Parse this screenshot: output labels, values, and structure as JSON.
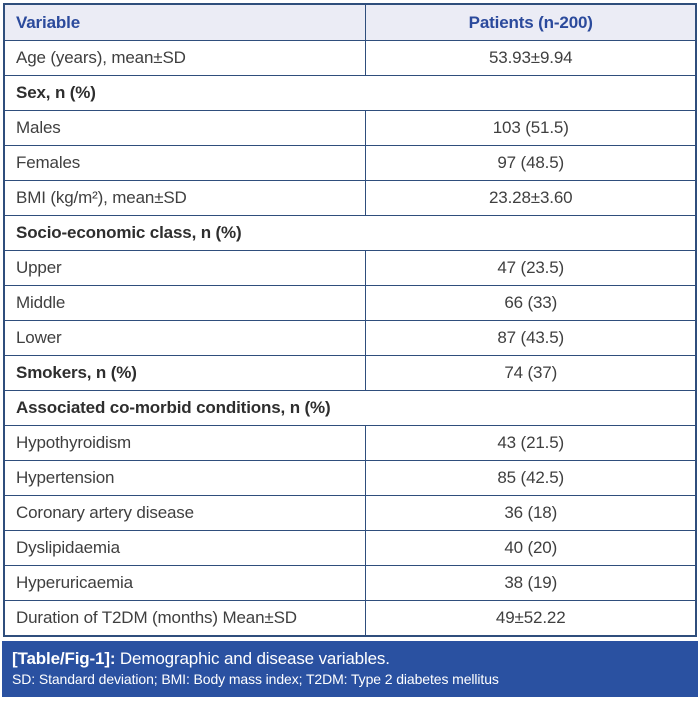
{
  "table": {
    "header": {
      "variable": "Variable",
      "patients": "Patients (n-200)"
    },
    "rows": [
      {
        "type": "data",
        "label": "Age (years), mean±SD",
        "value": "53.93±9.94"
      },
      {
        "type": "section",
        "label": "Sex, n (%)"
      },
      {
        "type": "data",
        "label": "Males",
        "value": "103 (51.5)"
      },
      {
        "type": "data",
        "label": "Females",
        "value": "97 (48.5)"
      },
      {
        "type": "data",
        "label": "BMI (kg/m²), mean±SD",
        "value": "23.28±3.60"
      },
      {
        "type": "section",
        "label": "Socio-economic class, n (%)"
      },
      {
        "type": "data",
        "label": "Upper",
        "value": "47 (23.5)"
      },
      {
        "type": "data",
        "label": "Middle",
        "value": "66 (33)"
      },
      {
        "type": "data",
        "label": "Lower",
        "value": "87 (43.5)"
      },
      {
        "type": "data",
        "label": "Smokers, n (%)",
        "value": "74 (37)",
        "bold": true
      },
      {
        "type": "section",
        "label": "Associated co-morbid conditions, n (%)"
      },
      {
        "type": "data",
        "label": "Hypothyroidism",
        "value": "43 (21.5)"
      },
      {
        "type": "data",
        "label": "Hypertension",
        "value": "85 (42.5)"
      },
      {
        "type": "data",
        "label": "Coronary artery disease",
        "value": "36 (18)"
      },
      {
        "type": "data",
        "label": "Dyslipidaemia",
        "value": "40 (20)"
      },
      {
        "type": "data",
        "label": "Hyperuricaemia",
        "value": "38 (19)"
      },
      {
        "type": "data",
        "label": "Duration of T2DM (months) Mean±SD",
        "value": "49±52.22"
      }
    ]
  },
  "footer": {
    "label": "[Table/Fig-1]:",
    "caption": " Demographic and disease variables.",
    "abbreviations": "SD: Standard deviation; BMI: Body mass index; T2DM: Type 2 diabetes mellitus"
  },
  "colors": {
    "border": "#2f4e7c",
    "header_bg": "#ebecf5",
    "header_text": "#2b4a9c",
    "body_text": "#3f3f3f",
    "footer_bg": "#2a51a1",
    "footer_text": "#ffffff"
  }
}
